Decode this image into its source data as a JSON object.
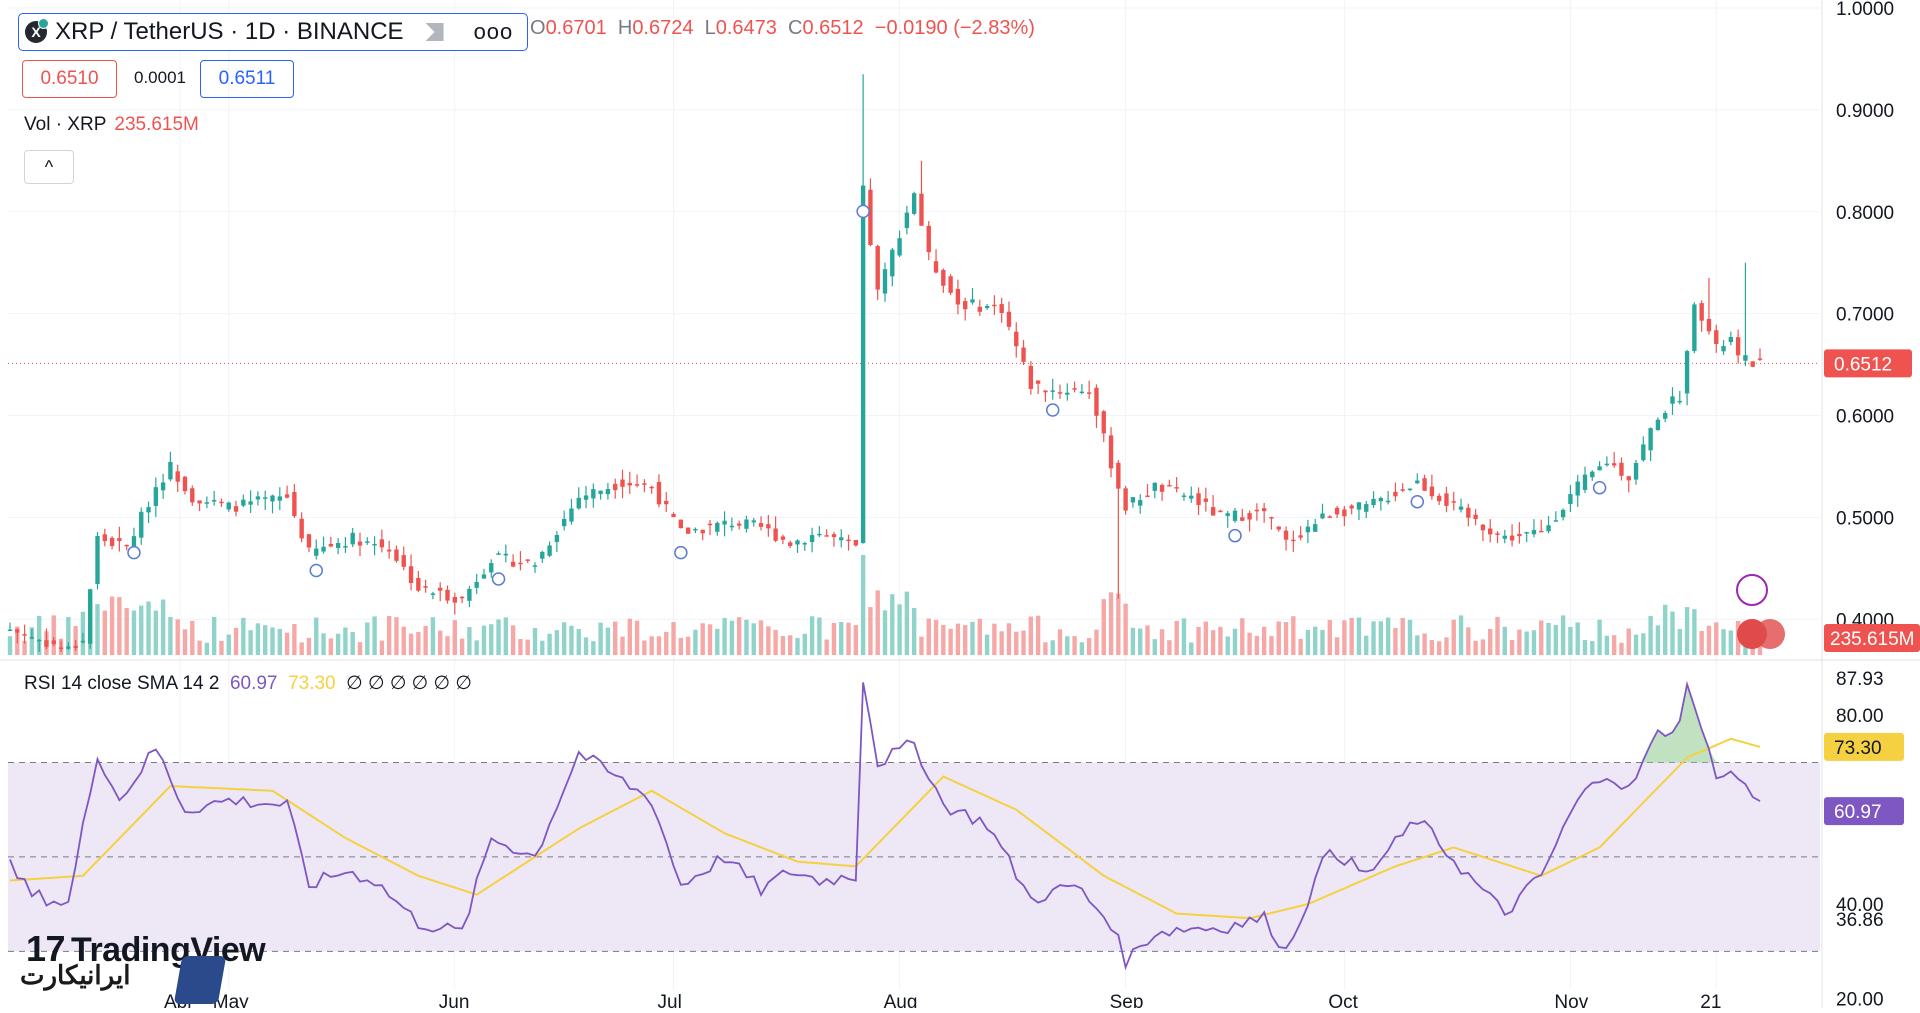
{
  "header": {
    "symbol_title": "XRP / TetherUS · 1D · BINANCE",
    "logo_glyph": "X",
    "more_label": "ooo",
    "ohlc": {
      "open_label": "O",
      "open": "0.6701",
      "high_label": "H",
      "high": "0.6724",
      "low_label": "L",
      "low": "0.6473",
      "close_label": "C",
      "close": "0.6512",
      "change": "−0.0190 (−2.83%)"
    },
    "bid": "0.6510",
    "spread": "0.0001",
    "ask": "0.6511"
  },
  "volume_legend": {
    "label": "Vol · XRP",
    "value": "235.615M"
  },
  "collapse_label": "^",
  "rsi_legend": {
    "label": "RSI 14 close SMA 14 2",
    "rsi": "60.97",
    "sma": "73.30",
    "extras": "∅ ∅ ∅ ∅ ∅ ∅"
  },
  "watermark": {
    "tradingview": "TradingView",
    "tv_mark": "17",
    "iranicart": "ایرانیکارت"
  },
  "colors": {
    "up": "#26a69a",
    "down": "#ef5350",
    "up_vol": "#8fd3cb",
    "down_vol": "#f5a8a6",
    "rsi_line": "#7e57c2",
    "sma_line": "#f5d142",
    "rsi_band": "#ede7f6"
  },
  "chart_data": [
    {
      "type": "candlestick",
      "x_axis_ticks": [
        "Apr",
        "May",
        "Jun",
        "Jul",
        "Aug",
        "Sep",
        "Oct",
        "Nov",
        "21"
      ],
      "y_ticks": [
        "1.0000",
        "0.9000",
        "0.8000",
        "0.7000",
        "0.6000",
        "0.5000",
        "0.4000"
      ],
      "ylim": [
        0.36,
        1.0
      ],
      "last_price_label": "0.6512",
      "last_price": 0.6512,
      "volume_label": "235.615M",
      "anchors": [
        {
          "day": 0,
          "close": 0.39
        },
        {
          "day": 8,
          "close": 0.37
        },
        {
          "day": 10,
          "close": 0.38
        },
        {
          "day": 12,
          "close": 0.48
        },
        {
          "day": 16,
          "close": 0.47
        },
        {
          "day": 20,
          "close": 0.53
        },
        {
          "day": 22,
          "close": 0.55
        },
        {
          "day": 25,
          "close": 0.52
        },
        {
          "day": 30,
          "close": 0.51
        },
        {
          "day": 38,
          "close": 0.52
        },
        {
          "day": 41,
          "close": 0.465
        },
        {
          "day": 47,
          "close": 0.48
        },
        {
          "day": 52,
          "close": 0.47
        },
        {
          "day": 56,
          "close": 0.43
        },
        {
          "day": 62,
          "close": 0.42
        },
        {
          "day": 66,
          "close": 0.46
        },
        {
          "day": 72,
          "close": 0.455
        },
        {
          "day": 78,
          "close": 0.52
        },
        {
          "day": 84,
          "close": 0.535
        },
        {
          "day": 88,
          "close": 0.53
        },
        {
          "day": 92,
          "close": 0.485
        },
        {
          "day": 99,
          "close": 0.495
        },
        {
          "day": 103,
          "close": 0.49
        },
        {
          "day": 107,
          "close": 0.475
        },
        {
          "day": 111,
          "close": 0.485
        },
        {
          "day": 116,
          "close": 0.47
        },
        {
          "day": 117,
          "close": 0.82
        },
        {
          "day": 119,
          "close": 0.72
        },
        {
          "day": 124,
          "close": 0.82
        },
        {
          "day": 126,
          "close": 0.755
        },
        {
          "day": 130,
          "close": 0.71
        },
        {
          "day": 136,
          "close": 0.705
        },
        {
          "day": 140,
          "close": 0.63
        },
        {
          "day": 143,
          "close": 0.625
        },
        {
          "day": 148,
          "close": 0.625
        },
        {
          "day": 149,
          "close": 0.6
        },
        {
          "day": 152,
          "close": 0.53
        },
        {
          "day": 153,
          "close": 0.51
        },
        {
          "day": 157,
          "close": 0.53
        },
        {
          "day": 162,
          "close": 0.52
        },
        {
          "day": 166,
          "close": 0.5
        },
        {
          "day": 172,
          "close": 0.505
        },
        {
          "day": 175,
          "close": 0.475
        },
        {
          "day": 181,
          "close": 0.505
        },
        {
          "day": 186,
          "close": 0.51
        },
        {
          "day": 193,
          "close": 0.535
        },
        {
          "day": 200,
          "close": 0.5
        },
        {
          "day": 205,
          "close": 0.48
        },
        {
          "day": 210,
          "close": 0.485
        },
        {
          "day": 215,
          "close": 0.53
        },
        {
          "day": 219,
          "close": 0.555
        },
        {
          "day": 222,
          "close": 0.54
        },
        {
          "day": 226,
          "close": 0.6
        },
        {
          "day": 229,
          "close": 0.62
        },
        {
          "day": 230,
          "close": 0.66
        },
        {
          "day": 231,
          "close": 0.715
        },
        {
          "day": 234,
          "close": 0.665
        },
        {
          "day": 236,
          "close": 0.675
        },
        {
          "day": 237,
          "close": 0.655
        },
        {
          "day": 240,
          "close": 0.6512
        }
      ],
      "spikes": [
        {
          "day": 117,
          "high": 0.935
        },
        {
          "day": 125,
          "high": 0.85
        },
        {
          "day": 152,
          "high": 0.42,
          "wick": "low"
        },
        {
          "day": 238,
          "high": 0.75
        },
        {
          "day": 233,
          "high": 0.735
        }
      ],
      "event_markers_days": [
        17,
        42,
        67,
        92,
        117,
        143,
        168,
        193,
        218
      ]
    },
    {
      "type": "line",
      "name": "RSI 14 close SMA 14 2",
      "y_ticks": [
        "87.93",
        "80.00",
        "40.00",
        "36.86",
        "20.00"
      ],
      "ylim": [
        18,
        90
      ],
      "bands": [
        30,
        50,
        70
      ],
      "rsi_last_label": "60.97",
      "sma_last_label": "73.30",
      "rsi_anchors": [
        {
          "day": 0,
          "v": 48
        },
        {
          "day": 3,
          "v": 42
        },
        {
          "day": 8,
          "v": 40
        },
        {
          "day": 12,
          "v": 72
        },
        {
          "day": 15,
          "v": 62
        },
        {
          "day": 20,
          "v": 73
        },
        {
          "day": 24,
          "v": 60
        },
        {
          "day": 30,
          "v": 62
        },
        {
          "day": 38,
          "v": 61
        },
        {
          "day": 41,
          "v": 44
        },
        {
          "day": 46,
          "v": 47
        },
        {
          "day": 50,
          "v": 45
        },
        {
          "day": 56,
          "v": 36
        },
        {
          "day": 62,
          "v": 34
        },
        {
          "day": 66,
          "v": 54
        },
        {
          "day": 72,
          "v": 50
        },
        {
          "day": 78,
          "v": 72
        },
        {
          "day": 82,
          "v": 68
        },
        {
          "day": 88,
          "v": 62
        },
        {
          "day": 92,
          "v": 44
        },
        {
          "day": 98,
          "v": 50
        },
        {
          "day": 103,
          "v": 43
        },
        {
          "day": 107,
          "v": 47
        },
        {
          "day": 111,
          "v": 45
        },
        {
          "day": 116,
          "v": 46
        },
        {
          "day": 117,
          "v": 88
        },
        {
          "day": 119,
          "v": 70
        },
        {
          "day": 124,
          "v": 74
        },
        {
          "day": 128,
          "v": 61
        },
        {
          "day": 134,
          "v": 57
        },
        {
          "day": 140,
          "v": 41
        },
        {
          "day": 146,
          "v": 44
        },
        {
          "day": 151,
          "v": 36
        },
        {
          "day": 153,
          "v": 28
        },
        {
          "day": 157,
          "v": 34
        },
        {
          "day": 162,
          "v": 35
        },
        {
          "day": 166,
          "v": 35
        },
        {
          "day": 172,
          "v": 37
        },
        {
          "day": 175,
          "v": 30
        },
        {
          "day": 181,
          "v": 52
        },
        {
          "day": 186,
          "v": 46
        },
        {
          "day": 193,
          "v": 58
        },
        {
          "day": 200,
          "v": 46
        },
        {
          "day": 205,
          "v": 38
        },
        {
          "day": 210,
          "v": 46
        },
        {
          "day": 215,
          "v": 62
        },
        {
          "day": 219,
          "v": 68
        },
        {
          "day": 222,
          "v": 64
        },
        {
          "day": 226,
          "v": 76
        },
        {
          "day": 229,
          "v": 78
        },
        {
          "day": 230,
          "v": 87.9
        },
        {
          "day": 232,
          "v": 76
        },
        {
          "day": 234,
          "v": 68
        },
        {
          "day": 237,
          "v": 67
        },
        {
          "day": 240,
          "v": 60.97
        }
      ],
      "sma_anchors": [
        {
          "day": 0,
          "v": 45
        },
        {
          "day": 10,
          "v": 46
        },
        {
          "day": 22,
          "v": 65
        },
        {
          "day": 36,
          "v": 64
        },
        {
          "day": 46,
          "v": 54
        },
        {
          "day": 56,
          "v": 46
        },
        {
          "day": 64,
          "v": 42
        },
        {
          "day": 78,
          "v": 56
        },
        {
          "day": 88,
          "v": 64
        },
        {
          "day": 98,
          "v": 55
        },
        {
          "day": 108,
          "v": 49
        },
        {
          "day": 116,
          "v": 48
        },
        {
          "day": 128,
          "v": 67
        },
        {
          "day": 138,
          "v": 60
        },
        {
          "day": 150,
          "v": 46
        },
        {
          "day": 160,
          "v": 38
        },
        {
          "day": 170,
          "v": 37
        },
        {
          "day": 178,
          "v": 40
        },
        {
          "day": 190,
          "v": 48
        },
        {
          "day": 198,
          "v": 52
        },
        {
          "day": 210,
          "v": 46
        },
        {
          "day": 218,
          "v": 52
        },
        {
          "day": 230,
          "v": 71
        },
        {
          "day": 236,
          "v": 75
        },
        {
          "day": 240,
          "v": 73.3
        }
      ]
    }
  ]
}
